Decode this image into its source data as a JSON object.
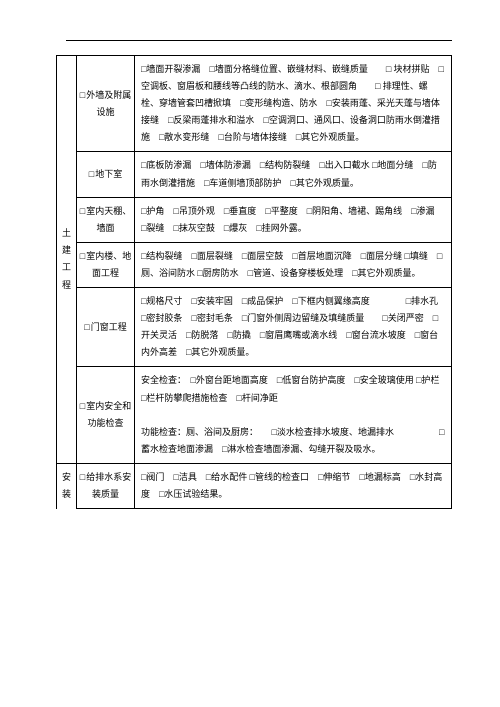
{
  "categories": {
    "tujian": "土建工程",
    "anzhuang": "安装"
  },
  "rows": [
    {
      "sub": "外墙及附属设施",
      "content": "□墙面开裂渗漏　□墙面分格缝位置、嵌缝材料、嵌缝质量　　□ 块材拼贴　□空调板、窗眉板和腰线等凸线的防水、滴水、根部圆角　　□ 排理性、螺栓、穿墙管套凹槽掀填　□变形缝构造、防水　□安装雨蓬、采光天蓬与墙体接缝　□反梁雨蓬排水和溢水　□空调洞口、通风口、设备洞口防雨水倒灌措施　□散水变形缝　□台阶与墙体接缝　□其它外观质量。"
    },
    {
      "sub": "地下室",
      "content": "□底板防渗漏　□墙体防渗漏　□结构防裂缝　□出入口截水 □地面分缝　□防雨水倒灌措施　□车道侧墙顶部防护　□其它外观质量。"
    },
    {
      "sub": "室内天棚、墙面",
      "content": "□护角　□吊顶外观　□垂直度　□平整度　□阴阳角、墙裙、踢角线　□渗漏　□裂缝　□抹灰空鼓　□爆灰　□挂网外露。"
    },
    {
      "sub": "室内楼、地面工程",
      "content": "□结构裂缝　□面层裂缝　□面层空鼓　□首层地面沉降　□面层分缝 □填缝　□厕、浴间防水 □厨房防水　□管道、设备穿楼板处理　□其它外观质量。"
    },
    {
      "sub": "门窗工程",
      "content": "□规格尺寸　□安装牢固　□成品保护　□下框内侧翼缘高度　　　　□排水孔　□密封胶条　□密封毛条　□门窗外侧周边留缝及填缝质量　　□关闭严密　□开关灵活　□防脱落　□防撬　□窗眉鹰嘴或滴水线　□窗台流水坡度　□窗台内外高差　□其它外观质量。"
    },
    {
      "sub": "室内安全和功能检查",
      "content": "安全检查：　□外窗台距地面高度　□低窗台防护高度　□安全玻璃使用 □护栏　□栏杆防攀爬措施检查　□杆间净距\n\n功能检查：厕、浴间及厨房：　　□淡水检查排水坡度、地漏排水　　　　　□蓄水检查地面渗漏　□淋水检查墙面渗漏、勾缝开裂及吸水。"
    },
    {
      "sub": "给排水系安装质量",
      "content": "□阀门　□洁具　□给水配件 □管线的检查口　□伸缩节　□地漏标高　□水封高度　□水压试验结果。"
    }
  ]
}
